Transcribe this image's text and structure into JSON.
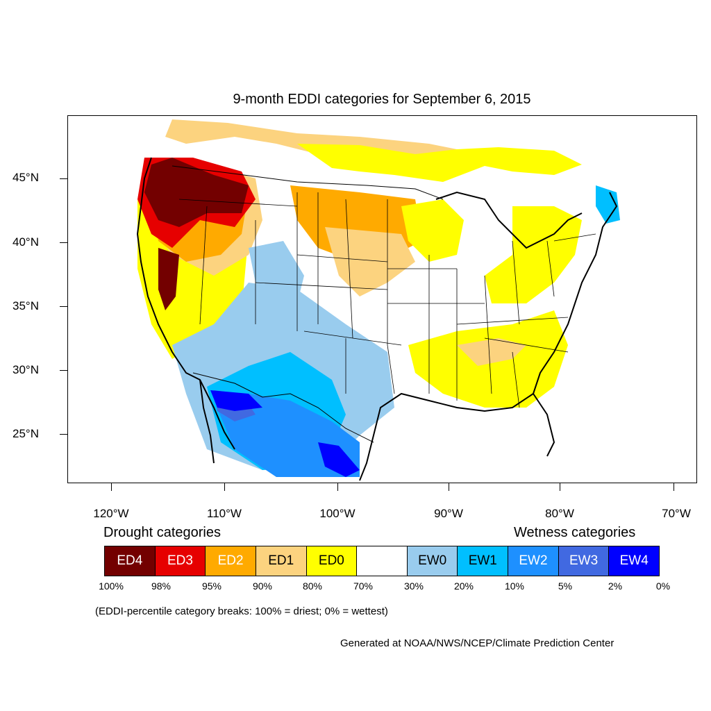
{
  "title": "9-month EDDI categories for September 6, 2015",
  "axes": {
    "lat_labels": [
      "45°N",
      "40°N",
      "35°N",
      "30°N",
      "25°N"
    ],
    "lon_labels": [
      "120°W",
      "110°W",
      "100°W",
      "90°W",
      "80°W",
      "70°W"
    ]
  },
  "legend": {
    "drought_heading": "Drought categories",
    "wetness_heading": "Wetness categories",
    "categories": [
      {
        "label": "ED4",
        "color": "#730000",
        "text_color": "#ffffff"
      },
      {
        "label": "ED3",
        "color": "#e60000",
        "text_color": "#ffffff"
      },
      {
        "label": "ED2",
        "color": "#ffaa00",
        "text_color": "#ffffff"
      },
      {
        "label": "ED1",
        "color": "#fcd37f",
        "text_color": "#000000"
      },
      {
        "label": "ED0",
        "color": "#ffff00",
        "text_color": "#000000"
      },
      {
        "label": "",
        "color": "#ffffff",
        "text_color": "#000000"
      },
      {
        "label": "EW0",
        "color": "#99ccee",
        "text_color": "#000000"
      },
      {
        "label": "EW1",
        "color": "#00bfff",
        "text_color": "#000000"
      },
      {
        "label": "EW2",
        "color": "#1e90ff",
        "text_color": "#ffffff"
      },
      {
        "label": "EW3",
        "color": "#4169e1",
        "text_color": "#ffffff"
      },
      {
        "label": "EW4",
        "color": "#0000ff",
        "text_color": "#ffffff"
      }
    ],
    "breaks": [
      "100%",
      "98%",
      "95%",
      "90%",
      "80%",
      "70%",
      "30%",
      "20%",
      "10%",
      "5%",
      "2%",
      "0%"
    ]
  },
  "note": "(EDDI-percentile category breaks: 100% = driest; 0% = wettest)",
  "credit": "Generated at NOAA/NWS/NCEP/Climate Prediction Center"
}
